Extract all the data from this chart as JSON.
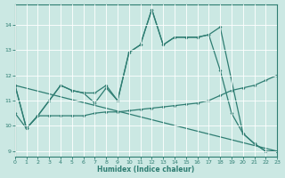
{
  "xlabel": "Humidex (Indice chaleur)",
  "bg_color": "#cbe8e3",
  "line_color": "#2e7d72",
  "grid_color": "#ffffff",
  "xlim": [
    0,
    23
  ],
  "ylim": [
    8.8,
    14.8
  ],
  "yticks": [
    9,
    10,
    11,
    12,
    13,
    14
  ],
  "xticks": [
    0,
    1,
    2,
    3,
    4,
    5,
    6,
    7,
    8,
    9,
    10,
    11,
    12,
    13,
    14,
    15,
    16,
    17,
    18,
    19,
    20,
    21,
    22,
    23
  ],
  "lines": [
    {
      "x": [
        0,
        1,
        2,
        3,
        4,
        5,
        6,
        7,
        8,
        9,
        10,
        11,
        12,
        13,
        14,
        15,
        16,
        17,
        18,
        20,
        21,
        22,
        23
      ],
      "y": [
        11.6,
        9.9,
        10.4,
        11.0,
        11.6,
        11.4,
        11.3,
        11.3,
        11.6,
        11.0,
        12.9,
        13.2,
        14.6,
        13.2,
        13.5,
        13.5,
        13.5,
        13.6,
        13.9,
        9.7,
        9.3,
        9.0,
        9.0
      ]
    },
    {
      "x": [
        0,
        1,
        2,
        3,
        4,
        5,
        6,
        7,
        8,
        9,
        10,
        11,
        12,
        13,
        14,
        15,
        16,
        17,
        18,
        19,
        20,
        21,
        22,
        23
      ],
      "y": [
        11.6,
        9.9,
        10.4,
        11.0,
        11.6,
        11.4,
        11.3,
        10.9,
        11.5,
        11.0,
        12.9,
        13.2,
        14.6,
        13.2,
        13.5,
        13.5,
        13.5,
        13.6,
        12.2,
        10.5,
        9.7,
        9.3,
        9.0,
        9.0
      ]
    },
    {
      "x": [
        0,
        1,
        2,
        3,
        4,
        5,
        6,
        7,
        8,
        9,
        10,
        11,
        12,
        13,
        14,
        15,
        16,
        17,
        18,
        19,
        20,
        21,
        22,
        23
      ],
      "y": [
        10.5,
        9.9,
        10.4,
        10.4,
        10.4,
        10.4,
        10.4,
        10.5,
        10.55,
        10.55,
        10.6,
        10.65,
        10.7,
        10.75,
        10.8,
        10.85,
        10.9,
        11.0,
        11.2,
        11.4,
        11.5,
        11.6,
        11.8,
        12.0
      ]
    },
    {
      "x": [
        0,
        23
      ],
      "y": [
        11.6,
        9.0
      ]
    }
  ]
}
